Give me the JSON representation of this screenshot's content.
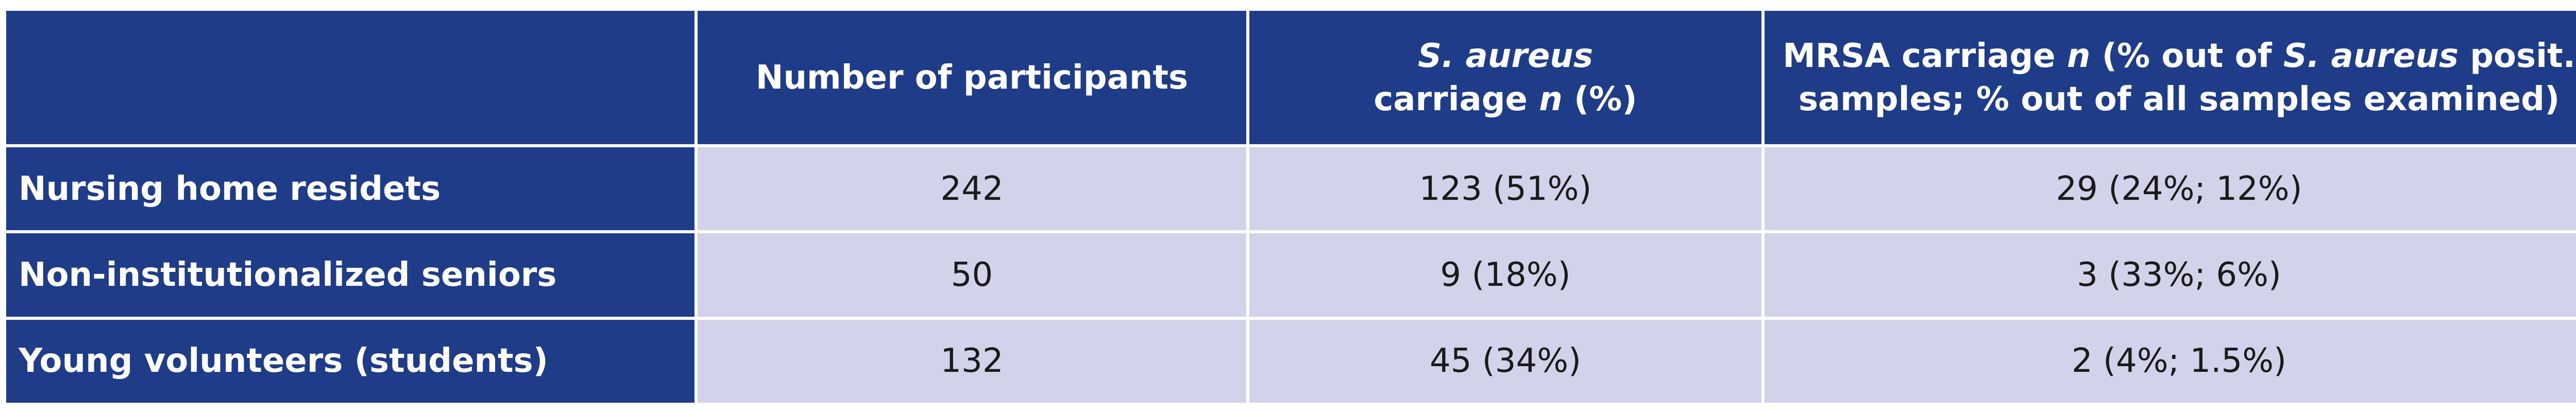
{
  "table": {
    "header": {
      "corner": "",
      "participants": "Number of participants",
      "s_aureus": {
        "italic_name": "S. aureus",
        "line2_prefix": "carriage ",
        "italic_n": "n",
        "line2_suffix": " (%)"
      },
      "mrsa": {
        "prefix": "MRSA carriage ",
        "italic_n": "n",
        "mid": " (% out of ",
        "italic_name": "S. aureus",
        "suffix": " posit. samples; % out of all samples examined)"
      }
    },
    "rows": [
      {
        "group": "Nursing home residets",
        "participants": "242",
        "s_aureus": "123 (51%)",
        "mrsa": "29 (24%; 12%)"
      },
      {
        "group": "Non-institutionalized seniors",
        "participants": "50",
        "s_aureus": "9 (18%)",
        "mrsa": "3 (33%; 6%)"
      },
      {
        "group": "Young volunteers (students)",
        "participants": "132",
        "s_aureus": "45 (34%)",
        "mrsa": "2 (4%; 1.5%)"
      }
    ],
    "colors": {
      "header_background": "#1f3c88",
      "header_text": "#ffffff",
      "cell_background": "#d2d2ea",
      "cell_text": "#1a1a1a",
      "grid_lines": "#ffffff"
    }
  }
}
